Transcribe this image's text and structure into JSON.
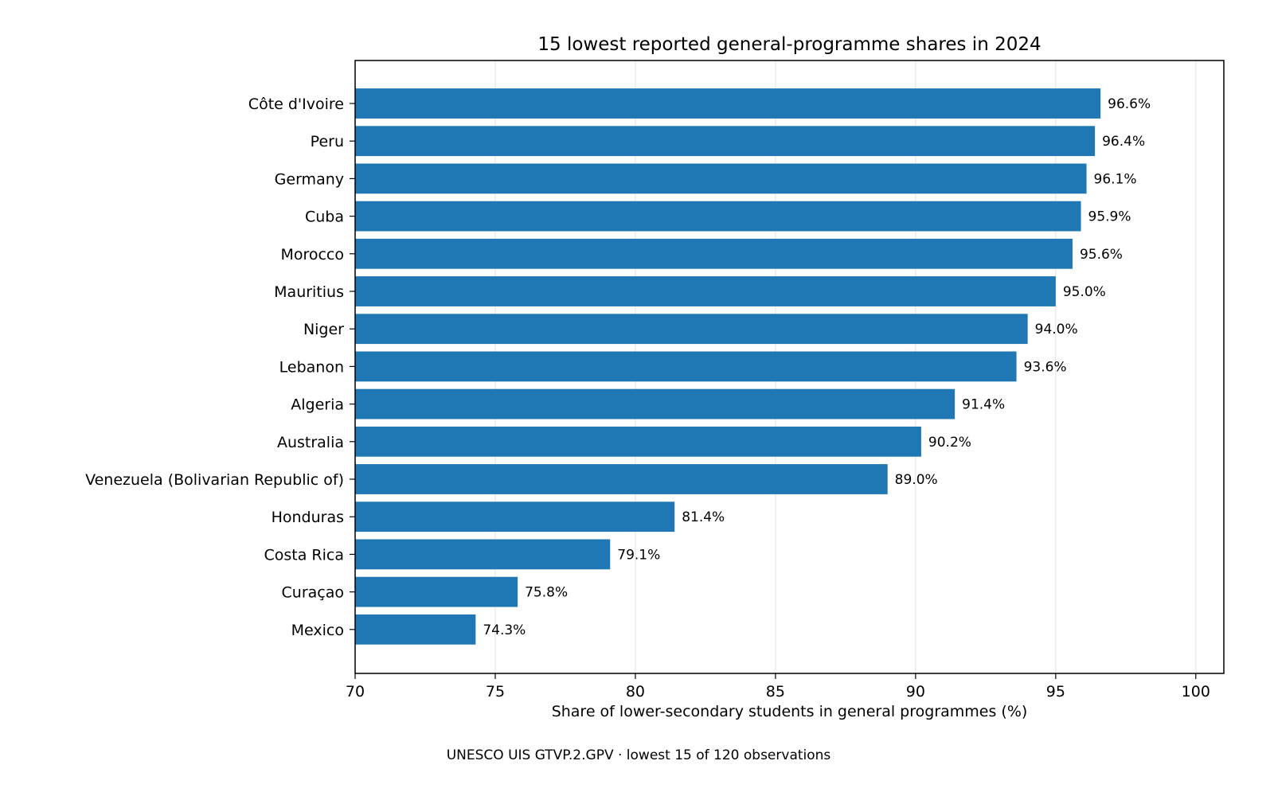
{
  "chart_data": {
    "type": "bar",
    "orientation": "horizontal",
    "title": "15 lowest reported general-programme shares in 2024",
    "xlabel": "Share of lower-secondary students in general programmes (%)",
    "ylabel": "",
    "xlim": [
      70,
      101
    ],
    "xticks": [
      70,
      75,
      80,
      85,
      90,
      95,
      100
    ],
    "grid": "vertical",
    "bar_color": "#1f77b4",
    "categories": [
      "Côte d'Ivoire",
      "Peru",
      "Germany",
      "Cuba",
      "Morocco",
      "Mauritius",
      "Niger",
      "Lebanon",
      "Algeria",
      "Australia",
      "Venezuela (Bolivarian Republic of)",
      "Honduras",
      "Costa Rica",
      "Curaçao",
      "Mexico"
    ],
    "values": [
      96.6,
      96.4,
      96.1,
      95.9,
      95.6,
      95.0,
      94.0,
      93.6,
      91.4,
      90.2,
      89.0,
      81.4,
      79.1,
      75.8,
      74.3
    ],
    "value_labels": [
      "96.6%",
      "96.4%",
      "96.1%",
      "95.9%",
      "95.6%",
      "95.0%",
      "94.0%",
      "93.6%",
      "91.4%",
      "90.2%",
      "89.0%",
      "81.4%",
      "79.1%",
      "75.8%",
      "74.3%"
    ]
  },
  "footnote": "UNESCO UIS GTVP.2.GPV · lowest 15 of 120 observations"
}
